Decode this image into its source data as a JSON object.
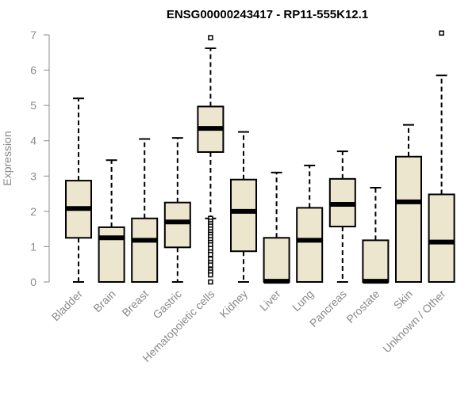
{
  "chart_data": {
    "type": "box",
    "title": "ENSG00000243417 - RP11-555K12.1",
    "xlabel": "",
    "ylabel": "Expression",
    "ylim": [
      0,
      7
    ],
    "yticks": [
      0,
      1,
      2,
      3,
      4,
      5,
      6,
      7
    ],
    "grid": false,
    "colors": {
      "box_fill": "#ede6cf",
      "stroke": "#000000",
      "axis": "#8a8a8a"
    },
    "categories": [
      "Bladder",
      "Brain",
      "Breast",
      "Gastric",
      "Hematopoietic cells",
      "Kidney",
      "Liver",
      "Lung",
      "Pancreas",
      "Prostate",
      "Skin",
      "Unknown / Other"
    ],
    "boxes": [
      {
        "min": 0,
        "q1": 1.25,
        "median": 2.08,
        "q3": 2.87,
        "max": 5.2,
        "outliers": []
      },
      {
        "min": 0,
        "q1": 0,
        "median": 1.25,
        "q3": 1.55,
        "max": 3.45,
        "outliers": []
      },
      {
        "min": 0,
        "q1": 0,
        "median": 1.18,
        "q3": 1.8,
        "max": 4.05,
        "outliers": []
      },
      {
        "min": 0,
        "q1": 0.98,
        "median": 1.7,
        "q3": 2.25,
        "max": 4.08,
        "outliers": []
      },
      {
        "min": 1.8,
        "q1": 3.68,
        "median": 4.35,
        "q3": 4.97,
        "max": 6.62,
        "outliers": [
          6.92,
          1.8,
          1.72,
          1.65,
          1.58,
          1.5,
          1.42,
          1.35,
          1.28,
          1.2,
          1.12,
          1.05,
          0.95,
          0.85,
          0.78,
          0.65,
          0.55,
          0.48,
          0.35,
          0.28,
          0.2,
          0.0
        ]
      },
      {
        "min": 0,
        "q1": 0.87,
        "median": 2.0,
        "q3": 2.9,
        "max": 4.25,
        "outliers": []
      },
      {
        "min": 0,
        "q1": 0,
        "median": 0.02,
        "q3": 1.25,
        "max": 3.1,
        "outliers": []
      },
      {
        "min": 0,
        "q1": 0,
        "median": 1.18,
        "q3": 2.1,
        "max": 3.3,
        "outliers": []
      },
      {
        "min": 0,
        "q1": 1.57,
        "median": 2.2,
        "q3": 2.92,
        "max": 3.7,
        "outliers": []
      },
      {
        "min": 0,
        "q1": 0,
        "median": 0.02,
        "q3": 1.18,
        "max": 2.67,
        "outliers": []
      },
      {
        "min": 0,
        "q1": 0,
        "median": 2.27,
        "q3": 3.55,
        "max": 4.45,
        "outliers": []
      },
      {
        "min": 0,
        "q1": 0,
        "median": 1.13,
        "q3": 2.48,
        "max": 5.85,
        "outliers": [
          7.05
        ]
      }
    ]
  }
}
